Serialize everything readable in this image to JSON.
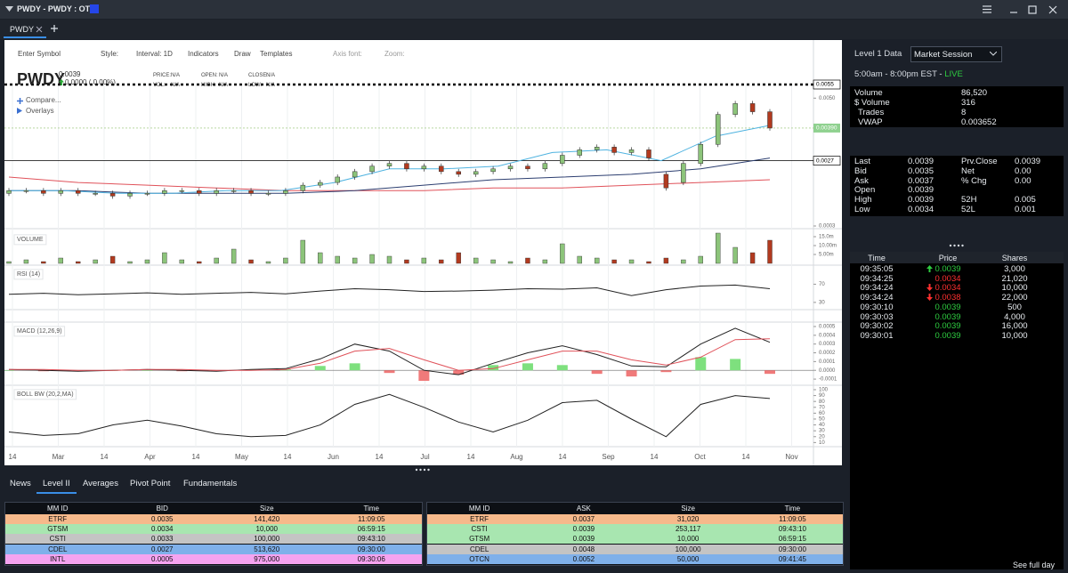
{
  "window": {
    "title": "PWDY - PWDY : OTC"
  },
  "tabs": [
    "PWDY"
  ],
  "toolbar": [
    "Enter Symbol",
    "Style:",
    "Interval: 1D",
    "Indicators",
    "Draw",
    "Templates",
    "Axis font:",
    "Zoom:"
  ],
  "quote_header": {
    "symbol": "PWDY",
    "price": "0.0039",
    "change": "0.0000 ( 0.00%)",
    "fields": [
      [
        "PRICE:",
        "N/A"
      ],
      [
        "VOL:",
        "N/A"
      ],
      [
        "OPEN:",
        "N/A"
      ],
      [
        "HIGH:",
        "N/A"
      ],
      [
        "CLOSE:",
        "N/A"
      ],
      [
        "LOW:",
        "N/A"
      ]
    ],
    "compare": "Compare...",
    "overlays": "Overlays"
  },
  "chart_data": [
    {
      "type": "candlestick",
      "x_labels": [
        "14",
        "Mar",
        "14",
        "Apr",
        "14",
        "May",
        "14",
        "Jun",
        "14",
        "Jul",
        "14",
        "Aug",
        "14",
        "Sep",
        "14",
        "Oct",
        "14",
        "Nov"
      ],
      "open": [
        0.0015,
        0.0016,
        0.0016,
        0.0015,
        0.0016,
        0.0015,
        0.0015,
        0.0014,
        0.0015,
        0.0015,
        0.0016,
        0.0016,
        0.0015,
        0.0016,
        0.0016,
        0.0015,
        0.0015,
        0.0016,
        0.0018,
        0.0019,
        0.0021,
        0.0023,
        0.0025,
        0.0026,
        0.0024,
        0.0025,
        0.0023,
        0.0022,
        0.0023,
        0.0024,
        0.0025,
        0.0024,
        0.0026,
        0.0029,
        0.0031,
        0.0032,
        0.003,
        0.0031,
        0.0022,
        0.0019,
        0.0026,
        0.0033,
        0.0044,
        0.0048,
        0.0045
      ],
      "close": [
        0.0016,
        0.0016,
        0.0015,
        0.0016,
        0.0015,
        0.0015,
        0.0014,
        0.0015,
        0.0015,
        0.0016,
        0.0016,
        0.0015,
        0.0016,
        0.0016,
        0.0015,
        0.0015,
        0.0016,
        0.0018,
        0.0019,
        0.0021,
        0.0023,
        0.0025,
        0.0026,
        0.0024,
        0.0025,
        0.0023,
        0.0022,
        0.0023,
        0.0024,
        0.0025,
        0.0024,
        0.0026,
        0.0029,
        0.0031,
        0.0032,
        0.003,
        0.0031,
        0.0028,
        0.0017,
        0.0026,
        0.0033,
        0.0044,
        0.0048,
        0.0045,
        0.0039
      ],
      "up_color": "#8cc47a",
      "down_color": "#b23a1f",
      "series": [
        {
          "color": "#e0525a",
          "values": [
            0.0021,
            0.0019,
            0.0018,
            0.0017,
            0.0016,
            0.0016,
            0.0016,
            0.0017,
            0.0017,
            0.0018,
            0.0019,
            0.002
          ]
        },
        {
          "color": "#2c3e70",
          "values": [
            0.0016,
            0.0016,
            0.0015,
            0.0015,
            0.0015,
            0.0016,
            0.0018,
            0.002,
            0.0021,
            0.0022,
            0.0024,
            0.0028
          ]
        },
        {
          "color": "#4fb3e0",
          "values": [
            0.0016,
            0.0016,
            0.0015,
            0.0015,
            0.0016,
            0.0016,
            0.0019,
            0.0024,
            0.0024,
            0.0025,
            0.003,
            0.0031,
            0.0027,
            0.0036,
            0.004
          ]
        }
      ],
      "ylim": [
        0.0003,
        0.0055
      ],
      "yticks": [
        {
          "value": 0.005,
          "label": "0.0050"
        },
        {
          "value": 0.0003,
          "label": "0.0003"
        }
      ],
      "price_lines": [
        {
          "value": 0.0055,
          "label": "0.0055",
          "style": "dotted"
        },
        {
          "value": 0.0027,
          "label": "0.0027",
          "style": "solid"
        }
      ],
      "last_price": {
        "value": 0.0039,
        "label": "0.00390",
        "color": "#8fd18f"
      }
    },
    {
      "type": "bar",
      "title": "VOLUME",
      "values": [
        1,
        2,
        1,
        3,
        1,
        2,
        4,
        1,
        2,
        6,
        2,
        1,
        3,
        8,
        2,
        1,
        3,
        13,
        6,
        4,
        3,
        5,
        4,
        2,
        3,
        2,
        6,
        3,
        2,
        1,
        3,
        2,
        11,
        4,
        3,
        2,
        2,
        1,
        3,
        2,
        4,
        17,
        9,
        6,
        13
      ],
      "ylim": [
        0,
        18
      ],
      "yticks": [
        {
          "value": 15,
          "label": "15.0m"
        },
        {
          "value": 10,
          "label": "10.00m"
        },
        {
          "value": 5,
          "label": "5.00m"
        }
      ]
    },
    {
      "type": "line",
      "title": "RSI (14)",
      "color": "#222222",
      "values": [
        48,
        50,
        47,
        49,
        51,
        48,
        50,
        52,
        49,
        55,
        60,
        58,
        54,
        55,
        57,
        60,
        59,
        62,
        45,
        58,
        66,
        68,
        60
      ],
      "ylim": [
        18,
        108
      ],
      "yticks": [
        70,
        30
      ]
    },
    {
      "type": "macd",
      "title": "MACD (12,26,9)",
      "series": [
        {
          "color": "#222222",
          "values": [
            1e-05,
            0,
            -1e-05,
            0,
            1e-05,
            0,
            -1e-05,
            1e-05,
            2e-05,
            0.00013,
            0.0003,
            0.00022,
            0,
            -5e-05,
            8e-05,
            0.0002,
            0.00028,
            0.00018,
            5e-05,
            4e-05,
            0.0003,
            0.00048,
            0.00032
          ]
        },
        {
          "color": "#e0525a",
          "values": [
            1e-05,
            1e-05,
            0,
            0,
            1e-05,
            1e-05,
            0,
            0,
            1e-05,
            8e-05,
            0.00022,
            0.00025,
            0.00012,
            0,
            2e-05,
            0.00012,
            0.00022,
            0.00022,
            0.00012,
            6e-05,
            0.00015,
            0.00035,
            0.00036
          ]
        }
      ],
      "histogram": [
        0,
        -1e-05,
        -1e-05,
        0,
        0,
        -1e-05,
        -1e-05,
        1e-05,
        1e-05,
        5e-05,
        8e-05,
        -3e-05,
        -0.00012,
        -5e-05,
        6e-05,
        8e-05,
        6e-05,
        -4e-05,
        -7e-05,
        -2e-05,
        0.00015,
        0.00013,
        -4e-05
      ],
      "pos_color": "#7ee07e",
      "neg_color": "#f07a7a",
      "ylim": [
        -0.00015,
        0.00052
      ],
      "yticks": [
        {
          "value": 0.0005,
          "label": "0.0005"
        },
        {
          "value": 0.0004,
          "label": "0.0004"
        },
        {
          "value": 0.0003,
          "label": "0.0003"
        },
        {
          "value": 0.0002,
          "label": "0.0002"
        },
        {
          "value": 0.0001,
          "label": "0.0001"
        },
        {
          "value": 0,
          "label": "0.0000"
        },
        {
          "value": -0.0001,
          "label": "-0.0001"
        }
      ]
    },
    {
      "type": "line",
      "title": "BOLL BW (20,2,MA)",
      "color": "#222222",
      "values": [
        28,
        22,
        25,
        40,
        48,
        38,
        25,
        20,
        22,
        40,
        75,
        92,
        70,
        45,
        28,
        48,
        78,
        82,
        50,
        20,
        75,
        90,
        85
      ],
      "ylim": [
        6,
        103
      ],
      "yticks": [
        100,
        90,
        80,
        70,
        60,
        50,
        40,
        30,
        20,
        10
      ]
    }
  ],
  "level2": {
    "tabs": [
      "News",
      "Level II",
      "Averages",
      "Pivot Point",
      "Fundamentals"
    ],
    "active_tab": 1,
    "bid": {
      "headers": [
        "MM ID",
        "BID",
        "Size",
        "Time"
      ],
      "rows": [
        {
          "cells": [
            "ETRF",
            "0.0035",
            "141,420",
            "11:09:05"
          ],
          "color": "#f6b98b"
        },
        {
          "cells": [
            "GTSM",
            "0.0034",
            "10,000",
            "06:59:15"
          ],
          "color": "#a8e6b0"
        },
        {
          "cells": [
            "CSTI",
            "0.0033",
            "100,000",
            "09:43:10"
          ],
          "color": "#c4c4c4"
        },
        {
          "cells": [
            "CDEL",
            "0.0027",
            "513,620",
            "09:30:00"
          ],
          "color": "#7fb0ea"
        },
        {
          "cells": [
            "INTL",
            "0.0005",
            "975,000",
            "09:30:06"
          ],
          "color": "#f5a3f0"
        }
      ]
    },
    "ask": {
      "headers": [
        "MM ID",
        "ASK",
        "Size",
        "Time"
      ],
      "rows": [
        {
          "cells": [
            "ETRF",
            "0.0037",
            "31,020",
            "11:09:05"
          ],
          "color": "#f6b98b"
        },
        {
          "cells": [
            "CSTI",
            "0.0039",
            "253,117",
            "09:43:10"
          ],
          "color": "#a8e6b0"
        },
        {
          "cells": [
            "GTSM",
            "0.0039",
            "10,000",
            "06:59:15"
          ],
          "color": "#a8e6b0"
        },
        {
          "cells": [
            "CDEL",
            "0.0048",
            "100,000",
            "09:30:00"
          ],
          "color": "#c4c4c4"
        },
        {
          "cells": [
            "OTCN",
            "0.0052",
            "50,000",
            "09:41:45"
          ],
          "color": "#7fb0ea"
        }
      ]
    }
  },
  "level1": {
    "title": "Level 1 Data",
    "session": "Market Session",
    "hours": "5:00am - 8:00pm EST - ",
    "live": "LIVE",
    "stats": [
      [
        "Volume",
        "86,520"
      ],
      [
        "$ Volume",
        "316"
      ],
      [
        "Trades",
        "8"
      ],
      [
        "VWAP",
        "0.003652"
      ]
    ],
    "quote": [
      [
        "Last",
        "0.0039",
        "Prv.Close",
        "0.0039"
      ],
      [
        "Bid",
        "0.0035",
        "Net",
        "0.00"
      ],
      [
        "Ask",
        "0.0037",
        "% Chg",
        "0.00"
      ],
      [
        "Open",
        "0.0039"
      ],
      [
        "High",
        "0.0039",
        "52H",
        "0.005"
      ],
      [
        "Low",
        "0.0034",
        "52L",
        "0.001"
      ]
    ]
  },
  "time_sales": {
    "headers": [
      "Time",
      "Price",
      "Shares"
    ],
    "rows": [
      {
        "time": "09:35:05",
        "price": "0.0039",
        "shares": "3,000",
        "color": "#2ecc40",
        "arrow": "up"
      },
      {
        "time": "09:34:25",
        "price": "0.0034",
        "shares": "21,020",
        "color": "#ff3030",
        "arrow": null
      },
      {
        "time": "09:34:24",
        "price": "0.0034",
        "shares": "10,000",
        "color": "#ff3030",
        "arrow": "down"
      },
      {
        "time": "09:34:24",
        "price": "0.0038",
        "shares": "22,000",
        "color": "#ff3030",
        "arrow": "down"
      },
      {
        "time": "09:30:10",
        "price": "0.0039",
        "shares": "500",
        "color": "#2ecc40",
        "arrow": null
      },
      {
        "time": "09:30:03",
        "price": "0.0039",
        "shares": "4,000",
        "color": "#2ecc40",
        "arrow": null
      },
      {
        "time": "09:30:02",
        "price": "0.0039",
        "shares": "16,000",
        "color": "#2ecc40",
        "arrow": null
      },
      {
        "time": "09:30:01",
        "price": "0.0039",
        "shares": "10,000",
        "color": "#2ecc40",
        "arrow": null
      }
    ],
    "see_full_day": "See full day"
  }
}
